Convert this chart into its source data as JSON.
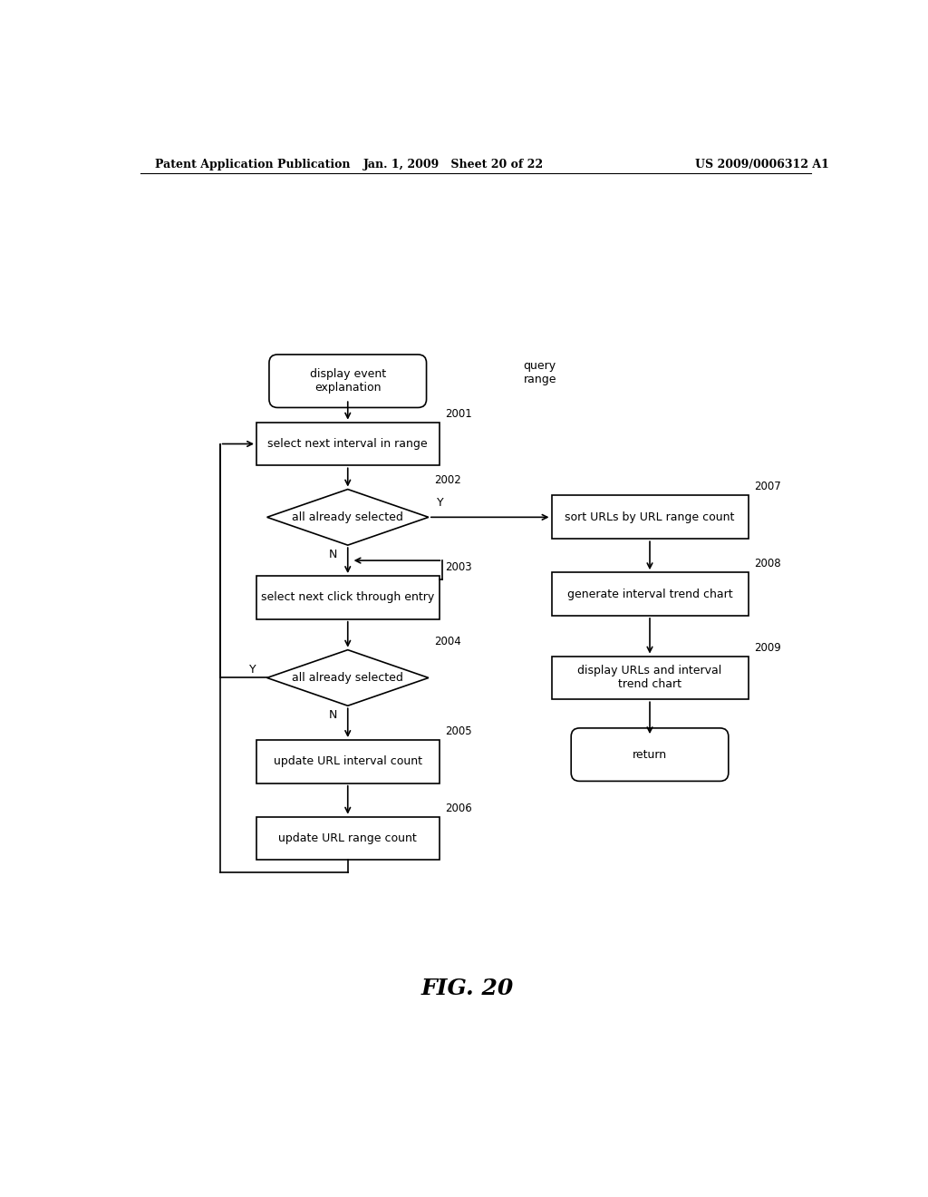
{
  "bg_color": "#ffffff",
  "header_left": "Patent Application Publication",
  "header_mid": "Jan. 1, 2009   Sheet 20 of 22",
  "header_right": "US 2009/0006312 A1",
  "fig_label": "FIG. 20",
  "query_range_label": "query\nrange"
}
